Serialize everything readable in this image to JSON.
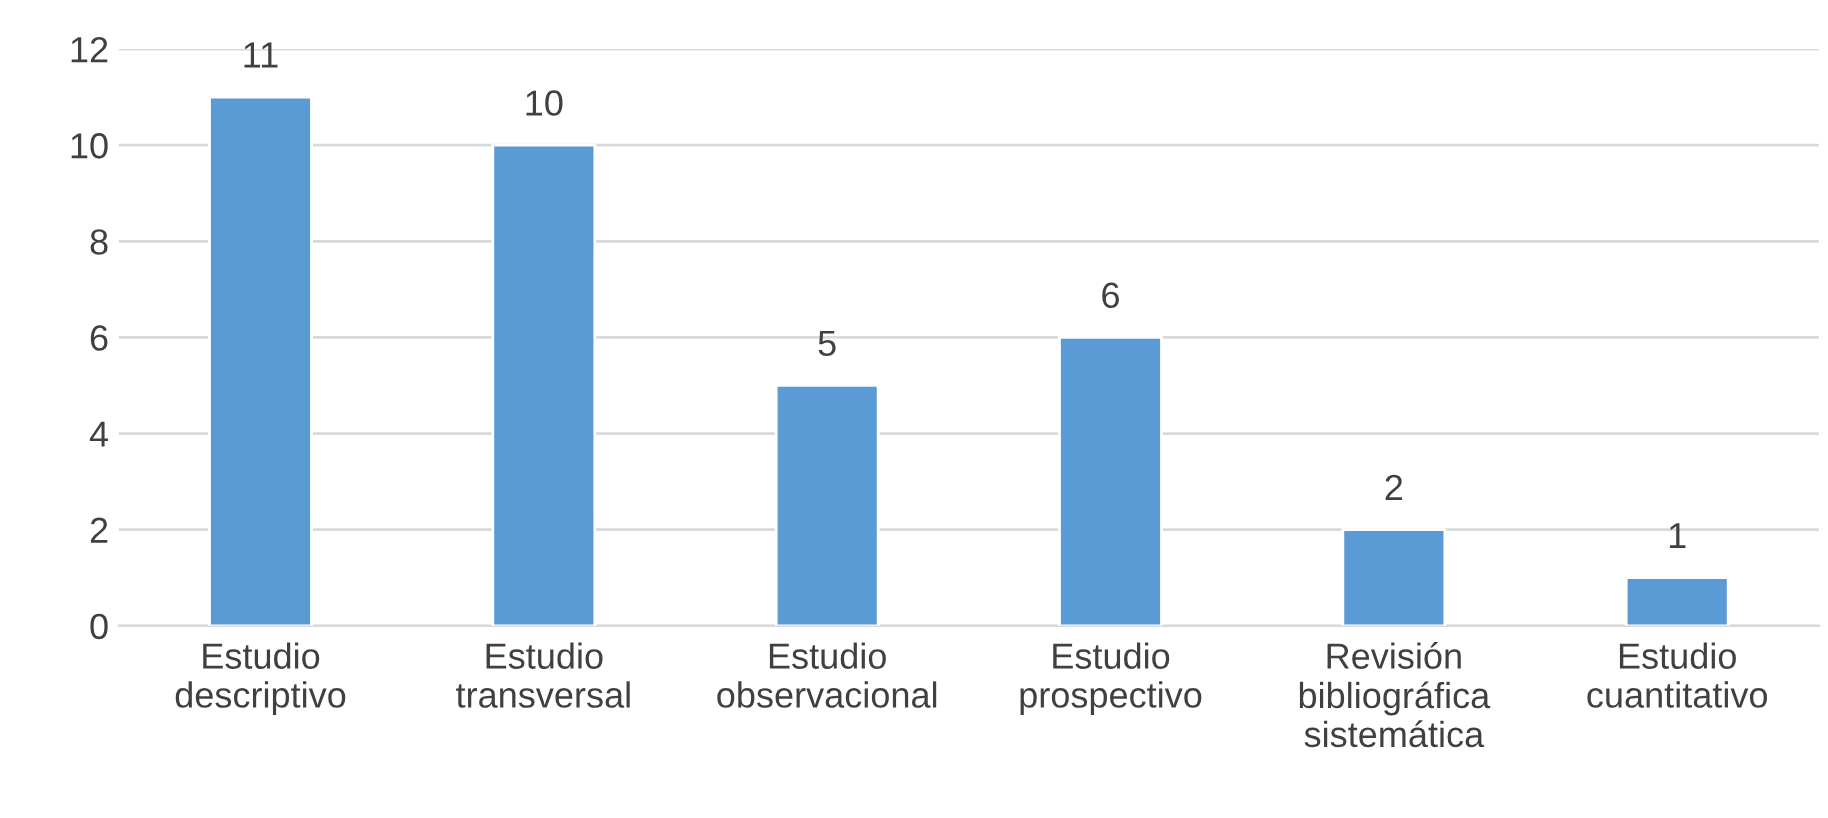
{
  "chart_data": {
    "type": "bar",
    "categories": [
      "Estudio\ndescriptivo",
      "Estudio\ntransversal",
      "Estudio\nobservacional",
      "Estudio\nprospectivo",
      "Revisión\nbibliográfica\nsistemática",
      "Estudio\ncuantitativo"
    ],
    "values": [
      11,
      10,
      5,
      6,
      2,
      1
    ],
    "color": "#5b9bd5",
    "ylim": [
      0,
      12
    ],
    "yticks": [
      0,
      2,
      4,
      6,
      8,
      10,
      12
    ],
    "grid": "y",
    "data_labels": true
  }
}
